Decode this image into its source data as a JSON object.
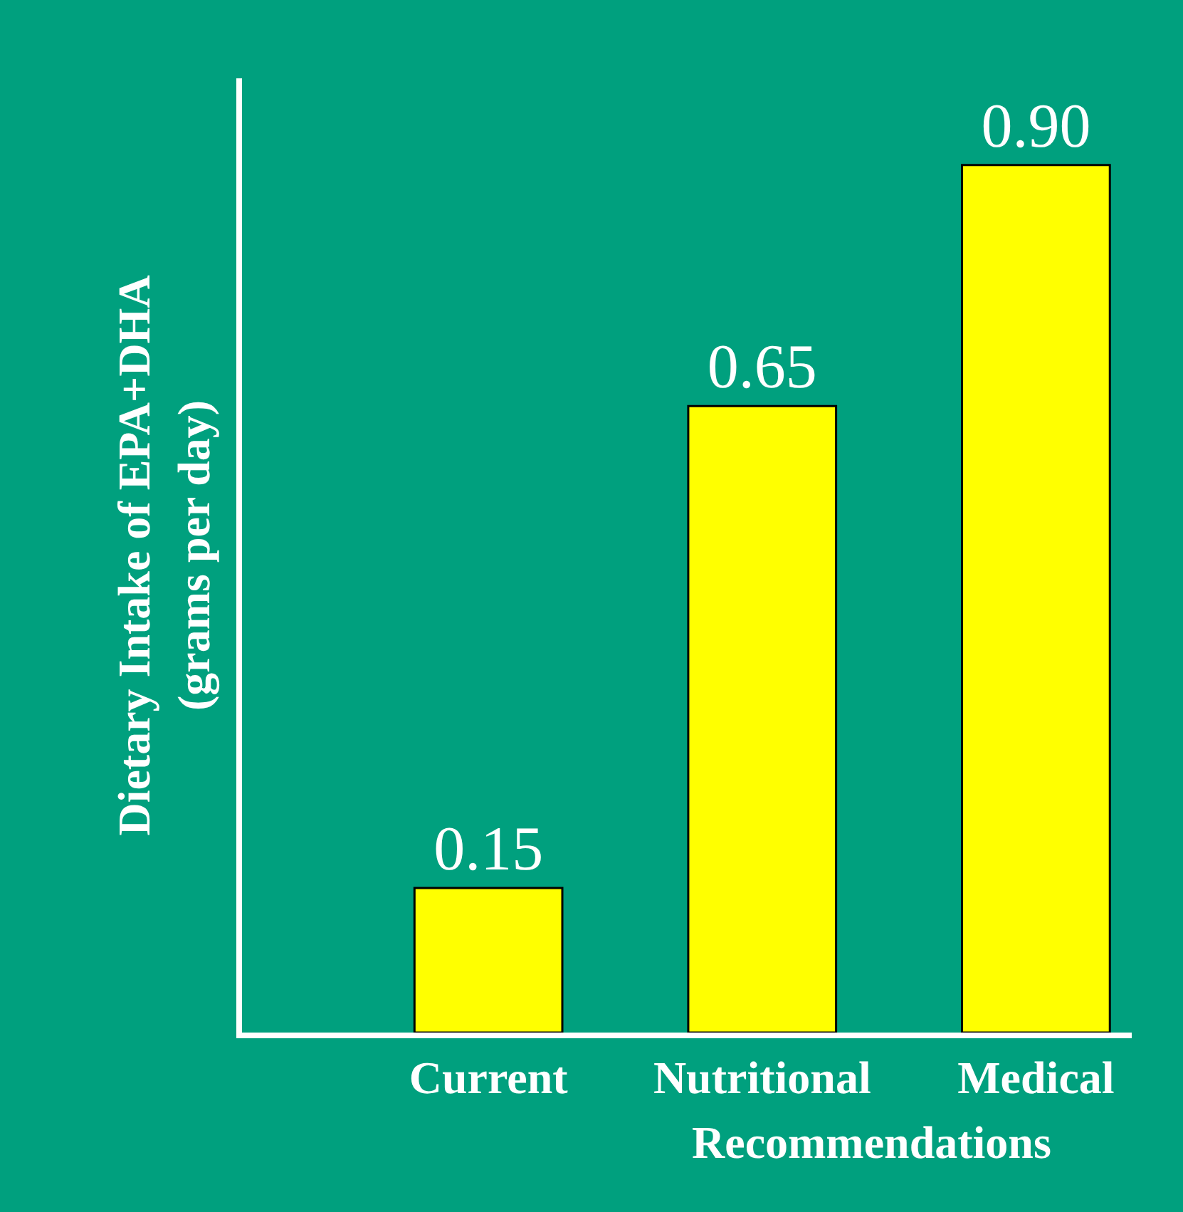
{
  "chart_data": {
    "type": "bar",
    "ylabel": "Dietary Intake of EPA+DHA\n(grams per day)",
    "categories": [
      "Current",
      "Nutritional",
      "Medical"
    ],
    "values": [
      0.15,
      0.65,
      0.9
    ],
    "value_labels": [
      "0.15",
      "0.65",
      "0.90"
    ],
    "color": "#ffff00",
    "annotations": [
      "Recommendations"
    ],
    "grid": false,
    "legend": false
  }
}
